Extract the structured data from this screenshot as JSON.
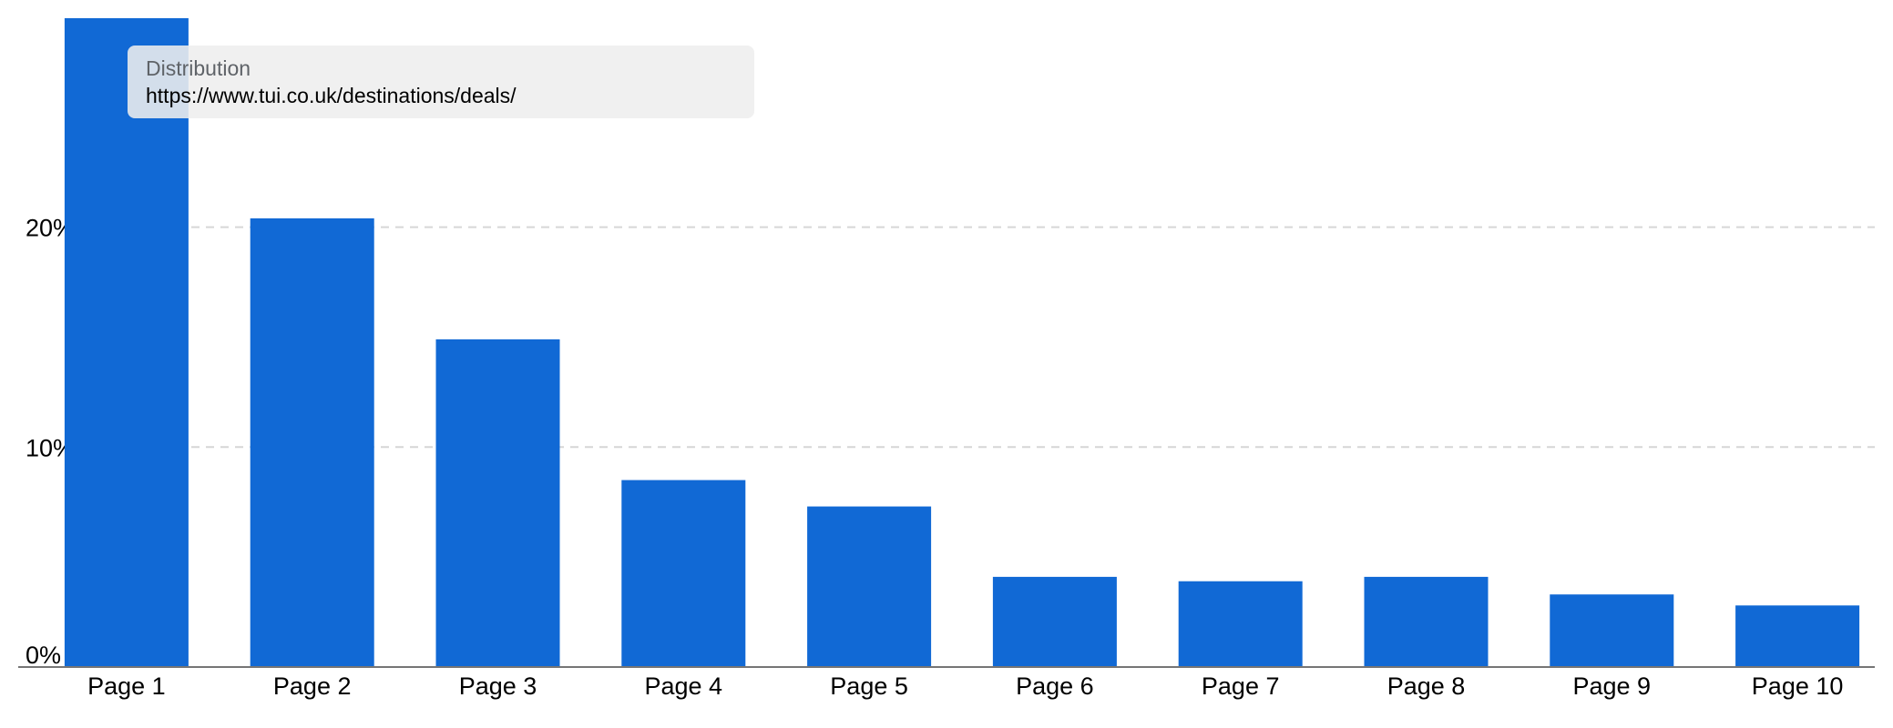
{
  "chart_data": {
    "type": "bar",
    "categories": [
      "Page 1",
      "Page 2",
      "Page 3",
      "Page 4",
      "Page 5",
      "Page 6",
      "Page 7",
      "Page 8",
      "Page 9",
      "Page 10"
    ],
    "values": [
      29.5,
      20.4,
      14.9,
      8.5,
      7.3,
      4.1,
      3.9,
      4.1,
      3.3,
      2.8
    ],
    "yticks": [
      {
        "value": 0,
        "label": "0%"
      },
      {
        "value": 10,
        "label": "10%"
      },
      {
        "value": 20,
        "label": "20%"
      }
    ],
    "ylim": [
      0,
      29.5
    ],
    "grid": true,
    "bar_color": "#1169d5",
    "title": "",
    "xlabel": "",
    "ylabel": ""
  },
  "tooltip": {
    "title": "Distribution",
    "value": "https://www.tui.co.uk/destinations/deals/"
  }
}
